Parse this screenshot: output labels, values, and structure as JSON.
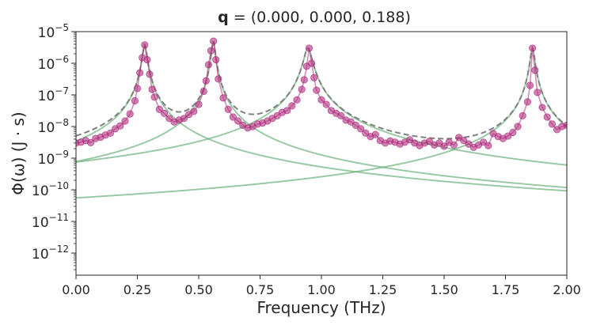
{
  "chart_data": {
    "type": "line",
    "title_bold": "q",
    "title_rest": " = (0.000, 0.000, 0.188)",
    "xlabel": "Frequency (THz)",
    "ylabel": "Φ(ω) (J · s)",
    "xlim": [
      0.0,
      2.0
    ],
    "ylim": [
      2e-13,
      1e-05
    ],
    "yscale": "log",
    "grid": false,
    "xticks": [
      0.0,
      0.25,
      0.5,
      0.75,
      1.0,
      1.25,
      1.5,
      1.75,
      2.0
    ],
    "xtick_labels": [
      "0.00",
      "0.25",
      "0.50",
      "0.75",
      "1.00",
      "1.25",
      "1.50",
      "1.75",
      "2.00"
    ],
    "yticks": [
      {
        "value": 1e-12,
        "base": "10",
        "exp": "−12"
      },
      {
        "value": 1e-11,
        "base": "10",
        "exp": "−11"
      },
      {
        "value": 1e-10,
        "base": "10",
        "exp": "−10"
      },
      {
        "value": 1e-09,
        "base": "10",
        "exp": "−9"
      },
      {
        "value": 1e-08,
        "base": "10",
        "exp": "−8"
      },
      {
        "value": 1e-07,
        "base": "10",
        "exp": "−7"
      },
      {
        "value": 1e-06,
        "base": "10",
        "exp": "−6"
      },
      {
        "value": 1e-05,
        "base": "10",
        "exp": "−5"
      }
    ],
    "peaks": [
      {
        "center": 0.28,
        "height": 3.8e-06,
        "width": 0.0085
      },
      {
        "center": 0.56,
        "height": 5e-06,
        "width": 0.007
      },
      {
        "center": 0.945,
        "height": 3e-06,
        "width": 0.015
      },
      {
        "center": 1.86,
        "height": 3e-06,
        "width": 0.008
      }
    ],
    "series": [
      {
        "kind": "measured",
        "style": "points",
        "color": "#b0307f",
        "x": [
          0.0,
          0.02,
          0.04,
          0.06,
          0.08,
          0.1,
          0.12,
          0.14,
          0.16,
          0.18,
          0.2,
          0.22,
          0.24,
          0.25,
          0.26,
          0.27,
          0.28,
          0.29,
          0.3,
          0.31,
          0.32,
          0.34,
          0.36,
          0.38,
          0.4,
          0.42,
          0.44,
          0.46,
          0.48,
          0.5,
          0.52,
          0.53,
          0.54,
          0.55,
          0.56,
          0.57,
          0.58,
          0.6,
          0.62,
          0.64,
          0.66,
          0.68,
          0.7,
          0.72,
          0.74,
          0.76,
          0.78,
          0.8,
          0.82,
          0.84,
          0.86,
          0.88,
          0.9,
          0.92,
          0.93,
          0.94,
          0.95,
          0.96,
          0.97,
          0.98,
          1.0,
          1.02,
          1.04,
          1.06,
          1.08,
          1.1,
          1.12,
          1.14,
          1.16,
          1.18,
          1.2,
          1.22,
          1.24,
          1.26,
          1.28,
          1.3,
          1.32,
          1.34,
          1.36,
          1.38,
          1.4,
          1.42,
          1.44,
          1.46,
          1.48,
          1.5,
          1.52,
          1.54,
          1.56,
          1.58,
          1.6,
          1.62,
          1.64,
          1.66,
          1.68,
          1.7,
          1.72,
          1.74,
          1.76,
          1.78,
          1.8,
          1.82,
          1.84,
          1.85,
          1.86,
          1.87,
          1.88,
          1.9,
          1.92,
          1.94,
          1.96,
          1.98,
          2.0
        ],
        "y": [
          3e-09,
          3.2e-09,
          3.6e-09,
          3.1e-09,
          4.2e-09,
          4.6e-09,
          5.4e-09,
          6.2e-09,
          8.5e-09,
          1.05e-08,
          1.5e-08,
          2.5e-08,
          6.5e-08,
          1.6e-07,
          5e-07,
          1.5e-06,
          3.8e-06,
          1.3e-06,
          4.5e-07,
          1.5e-07,
          8.5e-08,
          3.5e-08,
          2.6e-08,
          1.8e-08,
          1.4e-08,
          1.6e-08,
          1.8e-08,
          2.4e-08,
          3e-08,
          5e-08,
          1.3e-07,
          2.8e-07,
          9e-07,
          2.5e-06,
          5e-06,
          1.3e-06,
          3.2e-07,
          8e-08,
          3.5e-08,
          2e-08,
          1.5e-08,
          1.1e-08,
          9e-09,
          1e-08,
          1.2e-08,
          1.3e-08,
          1.5e-08,
          1.8e-08,
          2.2e-08,
          2.8e-08,
          3.2e-08,
          4.5e-08,
          7e-08,
          1.5e-07,
          3e-07,
          8e-07,
          3e-06,
          1e-06,
          3.5e-07,
          1.4e-07,
          7e-08,
          5e-08,
          3.2e-08,
          2.6e-08,
          2.2e-08,
          1.6e-08,
          1.4e-08,
          1.1e-08,
          8.5e-09,
          6.2e-09,
          4.8e-09,
          5.6e-09,
          3.6e-09,
          3e-09,
          3.5e-09,
          3.2e-09,
          2.8e-09,
          3.2e-09,
          3.8e-09,
          3e-09,
          2.5e-09,
          3e-09,
          3.4e-09,
          2.6e-09,
          3e-09,
          2.4e-09,
          3.2e-09,
          2.6e-09,
          4.5e-09,
          3.6e-09,
          2.8e-09,
          2.2e-09,
          2.6e-09,
          3.2e-09,
          2.5e-09,
          6e-09,
          4.8e-09,
          4.2e-09,
          5e-09,
          6.5e-09,
          1e-08,
          2.2e-08,
          6e-08,
          2e-07,
          3e-06,
          6e-07,
          1.2e-07,
          4e-08,
          2e-08,
          1.2e-08,
          8e-09,
          1e-08,
          1.1e-08
        ]
      },
      {
        "kind": "total-fit",
        "style": "dashed",
        "color": "#808080"
      },
      {
        "kind": "single-peak-fit",
        "style": "solid",
        "color": "#6ab17a"
      }
    ]
  }
}
